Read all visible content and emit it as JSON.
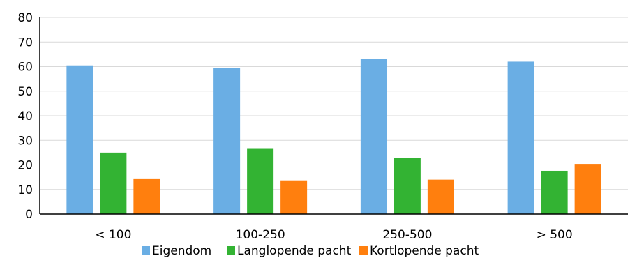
{
  "chart_data": {
    "type": "bar",
    "categories": [
      "< 100",
      "100-250",
      "250-500",
      "> 500"
    ],
    "series": [
      {
        "name": "Eigendom",
        "color": "#6aaee4",
        "values": [
          60.5,
          59.5,
          63.2,
          62.0
        ]
      },
      {
        "name": "Langlopende pacht",
        "color": "#33b333",
        "values": [
          25.0,
          26.8,
          22.8,
          17.6
        ]
      },
      {
        "name": "Kortlopende pacht",
        "color": "#ff7f0e",
        "values": [
          14.5,
          13.7,
          14.0,
          20.4
        ]
      }
    ],
    "ylim": [
      0,
      80
    ],
    "yticks": [
      "0",
      "10",
      "20",
      "30",
      "40",
      "50",
      "60",
      "70",
      "80"
    ],
    "grid": true,
    "legend": "bottom",
    "title": "",
    "xlabel": "",
    "ylabel": ""
  }
}
